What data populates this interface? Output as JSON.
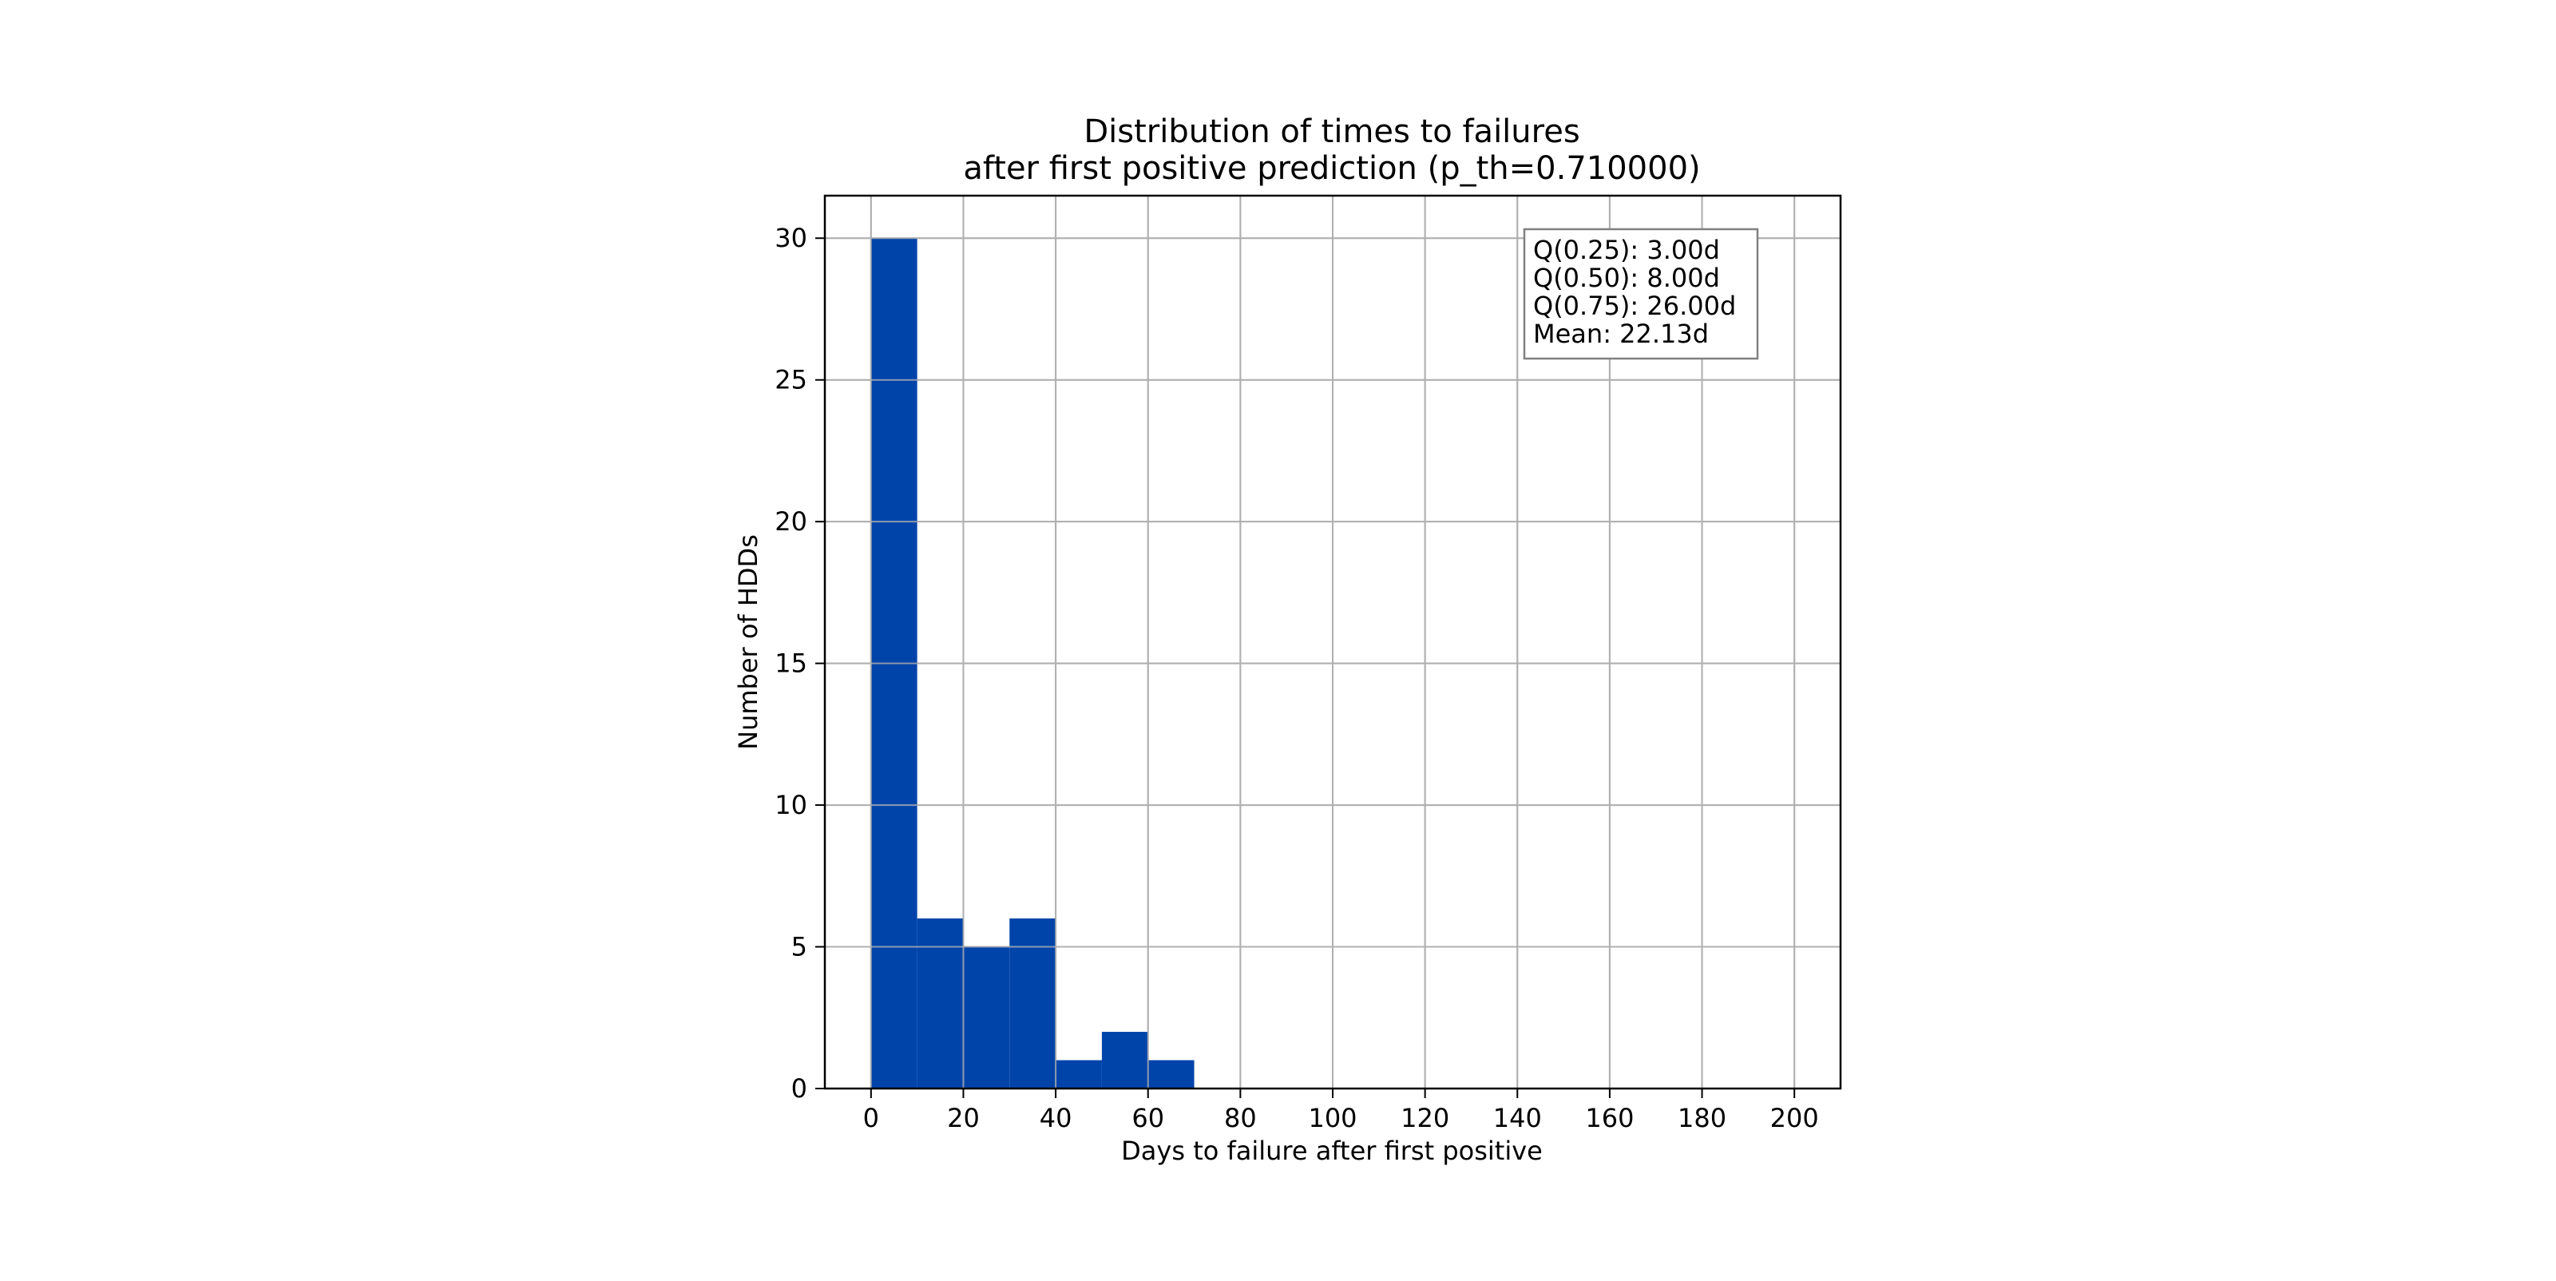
{
  "chart_data": {
    "type": "bar",
    "title_lines": [
      "Distribution of times to failures",
      "after first positive prediction (p_th=0.710000)"
    ],
    "xlabel": "Days to failure after first positive",
    "ylabel": "Number of HDDs",
    "xlim": [
      -10,
      210
    ],
    "ylim": [
      0,
      31.5
    ],
    "x_ticks": [
      0,
      20,
      40,
      60,
      80,
      100,
      120,
      140,
      160,
      180,
      200
    ],
    "y_ticks": [
      0,
      5,
      10,
      15,
      20,
      25,
      30
    ],
    "grid": true,
    "bin_edges": [
      0,
      10,
      20,
      30,
      40,
      50,
      60,
      70
    ],
    "values": [
      30,
      6,
      5,
      6,
      1,
      2,
      1
    ],
    "bar_color": "#0044aa",
    "stats_box": {
      "position": "top-right",
      "lines": [
        "Q(0.25): 3.00d",
        "Q(0.50): 8.00d",
        "Q(0.75): 26.00d",
        "Mean: 22.13d"
      ]
    }
  }
}
